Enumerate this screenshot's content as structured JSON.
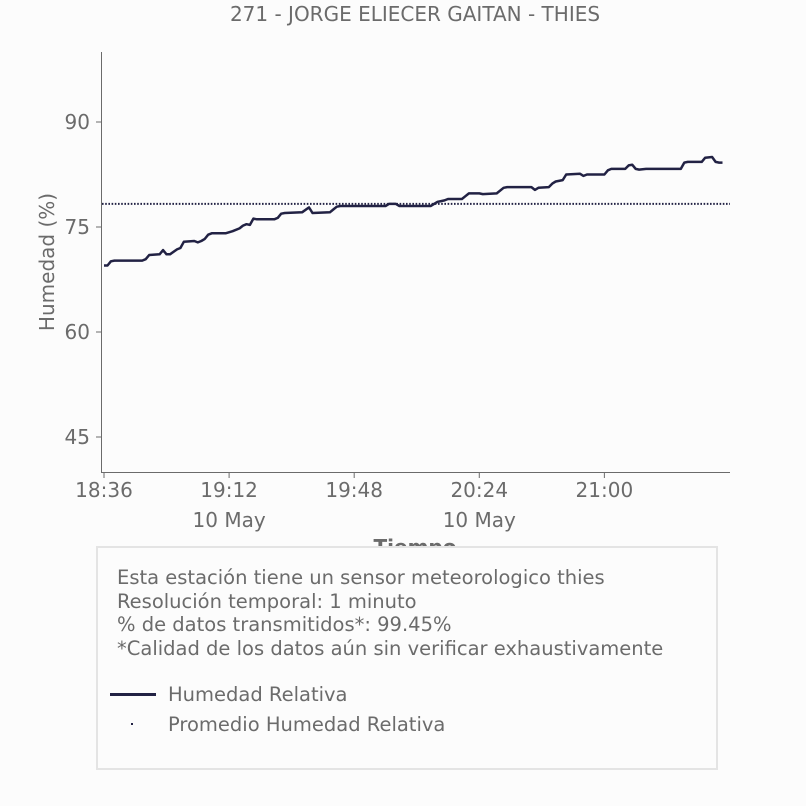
{
  "chart_data": {
    "type": "line",
    "title": "271 - JORGE ELIECER GAITAN - THIES",
    "xlabel": "Tiempo",
    "ylabel": "Humedad (%)",
    "x_start": "18:36",
    "x_end": "21:35",
    "x_ticks": [
      {
        "time": "18:36",
        "label": "18:36",
        "sublabel": ""
      },
      {
        "time": "19:12",
        "label": "19:12",
        "sublabel": "10 May"
      },
      {
        "time": "19:48",
        "label": "19:48",
        "sublabel": ""
      },
      {
        "time": "20:24",
        "label": "20:24",
        "sublabel": "10 May"
      },
      {
        "time": "21:00",
        "label": "21:00",
        "sublabel": ""
      }
    ],
    "y_ticks": [
      45,
      60,
      75,
      90
    ],
    "ylim": [
      40,
      100
    ],
    "grid": false,
    "series": [
      {
        "name": "Humedad Relativa",
        "color": "#222244",
        "style": "solid",
        "points": [
          [
            "18:36",
            69.5
          ],
          [
            "18:37",
            69.5
          ],
          [
            "18:38",
            70.1
          ],
          [
            "18:39",
            70.2
          ],
          [
            "18:45",
            70.2
          ],
          [
            "18:47",
            70.2
          ],
          [
            "18:48",
            70.4
          ],
          [
            "18:49",
            71.0
          ],
          [
            "18:52",
            71.1
          ],
          [
            "18:53",
            71.7
          ],
          [
            "18:54",
            71.1
          ],
          [
            "18:55",
            71.1
          ],
          [
            "18:57",
            71.8
          ],
          [
            "18:58",
            72.0
          ],
          [
            "18:59",
            72.9
          ],
          [
            "19:02",
            73.0
          ],
          [
            "19:03",
            72.8
          ],
          [
            "19:04",
            73.0
          ],
          [
            "19:05",
            73.3
          ],
          [
            "19:06",
            73.9
          ],
          [
            "19:07",
            74.1
          ],
          [
            "19:11",
            74.1
          ],
          [
            "19:13",
            74.4
          ],
          [
            "19:15",
            74.8
          ],
          [
            "19:16",
            75.2
          ],
          [
            "19:17",
            75.4
          ],
          [
            "19:18",
            75.3
          ],
          [
            "19:19",
            76.2
          ],
          [
            "19:20",
            76.1
          ],
          [
            "19:25",
            76.1
          ],
          [
            "19:26",
            76.3
          ],
          [
            "19:27",
            76.9
          ],
          [
            "19:28",
            77.0
          ],
          [
            "19:33",
            77.1
          ],
          [
            "19:35",
            77.8
          ],
          [
            "19:36",
            77.0
          ],
          [
            "19:41",
            77.1
          ],
          [
            "19:42",
            77.5
          ],
          [
            "19:43",
            77.9
          ],
          [
            "19:44",
            78.0
          ],
          [
            "19:57",
            78.0
          ],
          [
            "19:58",
            78.3
          ],
          [
            "20:00",
            78.3
          ],
          [
            "20:01",
            78.0
          ],
          [
            "20:10",
            78.0
          ],
          [
            "20:12",
            78.6
          ],
          [
            "20:13",
            78.7
          ],
          [
            "20:14",
            78.8
          ],
          [
            "20:15",
            79.0
          ],
          [
            "20:19",
            79.0
          ],
          [
            "20:20",
            79.4
          ],
          [
            "20:21",
            79.8
          ],
          [
            "20:24",
            79.8
          ],
          [
            "20:25",
            79.7
          ],
          [
            "20:29",
            79.8
          ],
          [
            "20:31",
            80.6
          ],
          [
            "20:32",
            80.7
          ],
          [
            "20:39",
            80.7
          ],
          [
            "20:40",
            80.3
          ],
          [
            "20:41",
            80.6
          ],
          [
            "20:44",
            80.7
          ],
          [
            "20:45",
            81.2
          ],
          [
            "20:46",
            81.5
          ],
          [
            "20:48",
            81.7
          ],
          [
            "20:49",
            82.5
          ],
          [
            "20:53",
            82.6
          ],
          [
            "20:54",
            82.3
          ],
          [
            "20:55",
            82.5
          ],
          [
            "21:00",
            82.5
          ],
          [
            "21:01",
            83.1
          ],
          [
            "21:02",
            83.3
          ],
          [
            "21:06",
            83.3
          ],
          [
            "21:07",
            83.8
          ],
          [
            "21:08",
            83.9
          ],
          [
            "21:09",
            83.3
          ],
          [
            "21:10",
            83.2
          ],
          [
            "21:12",
            83.3
          ],
          [
            "21:22",
            83.3
          ],
          [
            "21:23",
            84.2
          ],
          [
            "21:24",
            84.3
          ],
          [
            "21:28",
            84.3
          ],
          [
            "21:29",
            84.9
          ],
          [
            "21:31",
            85.0
          ],
          [
            "21:32",
            84.3
          ],
          [
            "21:33",
            84.2
          ],
          [
            "21:34",
            84.2
          ]
        ]
      },
      {
        "name": "Promedio Humedad Relativa",
        "color": "#222244",
        "style": "dotted",
        "value": 78.3
      }
    ]
  },
  "info": {
    "lines": [
      "Esta estación tiene un sensor meteorologico thies",
      "Resolución temporal: 1 minuto",
      "% de datos transmitidos*: 99.45%",
      "*Calidad de los datos aún sin verificar exhaustivamente"
    ]
  }
}
